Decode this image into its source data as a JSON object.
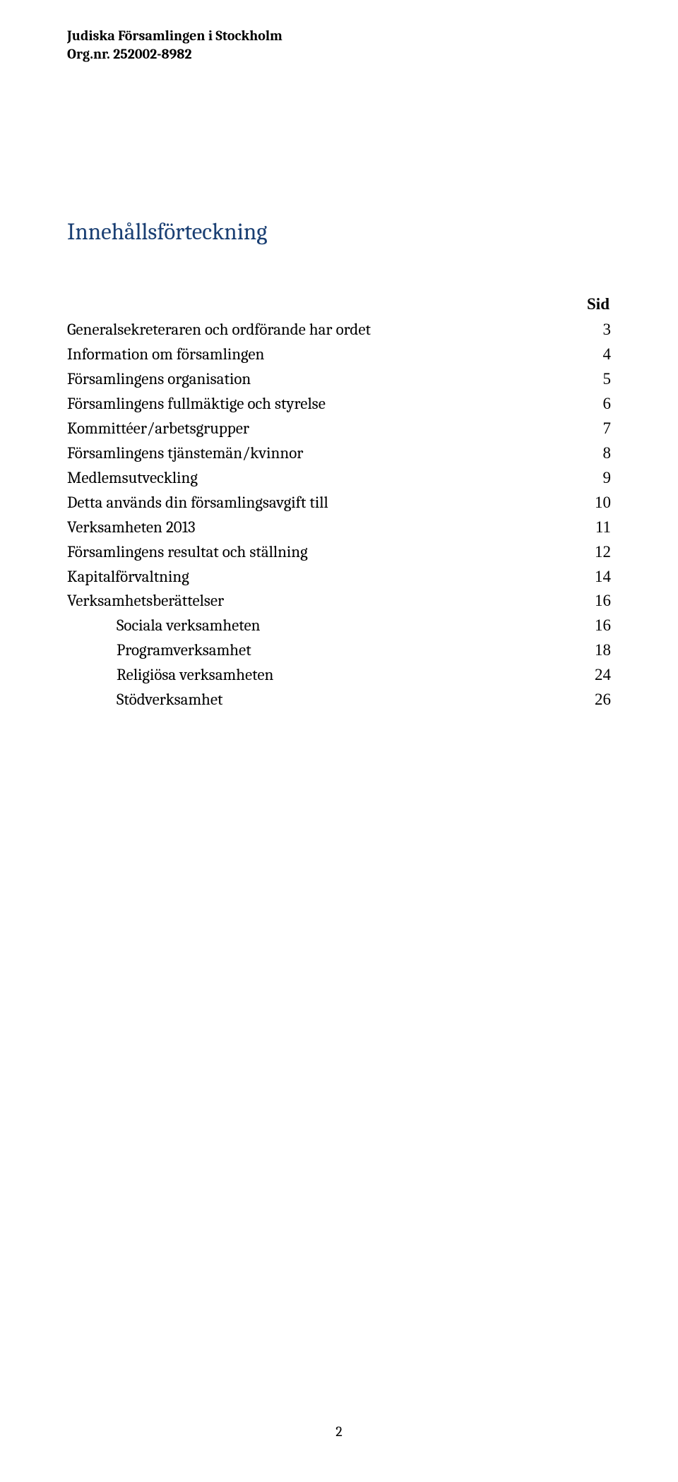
{
  "header": {
    "line1": "Judiska Församlingen i Stockholm",
    "line2": "Org.nr. 252002-8982"
  },
  "title": "Innehållsförteckning",
  "sid_label": "Sid",
  "toc": [
    {
      "label": "Generalsekreteraren och ordförande har ordet",
      "page": "3",
      "indent": false
    },
    {
      "label": "Information om församlingen",
      "page": "4",
      "indent": false
    },
    {
      "label": "Församlingens organisation",
      "page": "5",
      "indent": false
    },
    {
      "label": "Församlingens fullmäktige och styrelse",
      "page": "6",
      "indent": false
    },
    {
      "label": "Kommittéer/arbetsgrupper",
      "page": "7",
      "indent": false
    },
    {
      "label": "Församlingens tjänstemän/kvinnor",
      "page": "8",
      "indent": false
    },
    {
      "label": "Medlemsutveckling",
      "page": "9",
      "indent": false
    },
    {
      "label": "Detta används din församlingsavgift till",
      "page": "10",
      "indent": false
    },
    {
      "label": "Verksamheten 2013",
      "page": "11",
      "indent": false
    },
    {
      "label": "Församlingens resultat och ställning",
      "page": "12",
      "indent": false
    },
    {
      "label": "Kapitalförvaltning",
      "page": "14",
      "indent": false
    },
    {
      "label": "Verksamhetsberättelser",
      "page": "16",
      "indent": false
    },
    {
      "label": "Sociala verksamheten",
      "page": "16",
      "indent": true
    },
    {
      "label": "Programverksamhet",
      "page": "18",
      "indent": true
    },
    {
      "label": "Religiösa verksamheten",
      "page": "24",
      "indent": true
    },
    {
      "label": "Stödverksamhet",
      "page": "26",
      "indent": true
    }
  ],
  "page_number": "2",
  "colors": {
    "title_color": "#1a3f73",
    "text_color": "#000000",
    "background": "#ffffff"
  },
  "typography": {
    "header_fontsize_pt": 15,
    "title_fontsize_pt": 25,
    "body_fontsize_pt": 17,
    "pagenum_fontsize_pt": 15,
    "title_font": "Cambria",
    "body_font": "Cambria",
    "page_font": "Times New Roman"
  }
}
